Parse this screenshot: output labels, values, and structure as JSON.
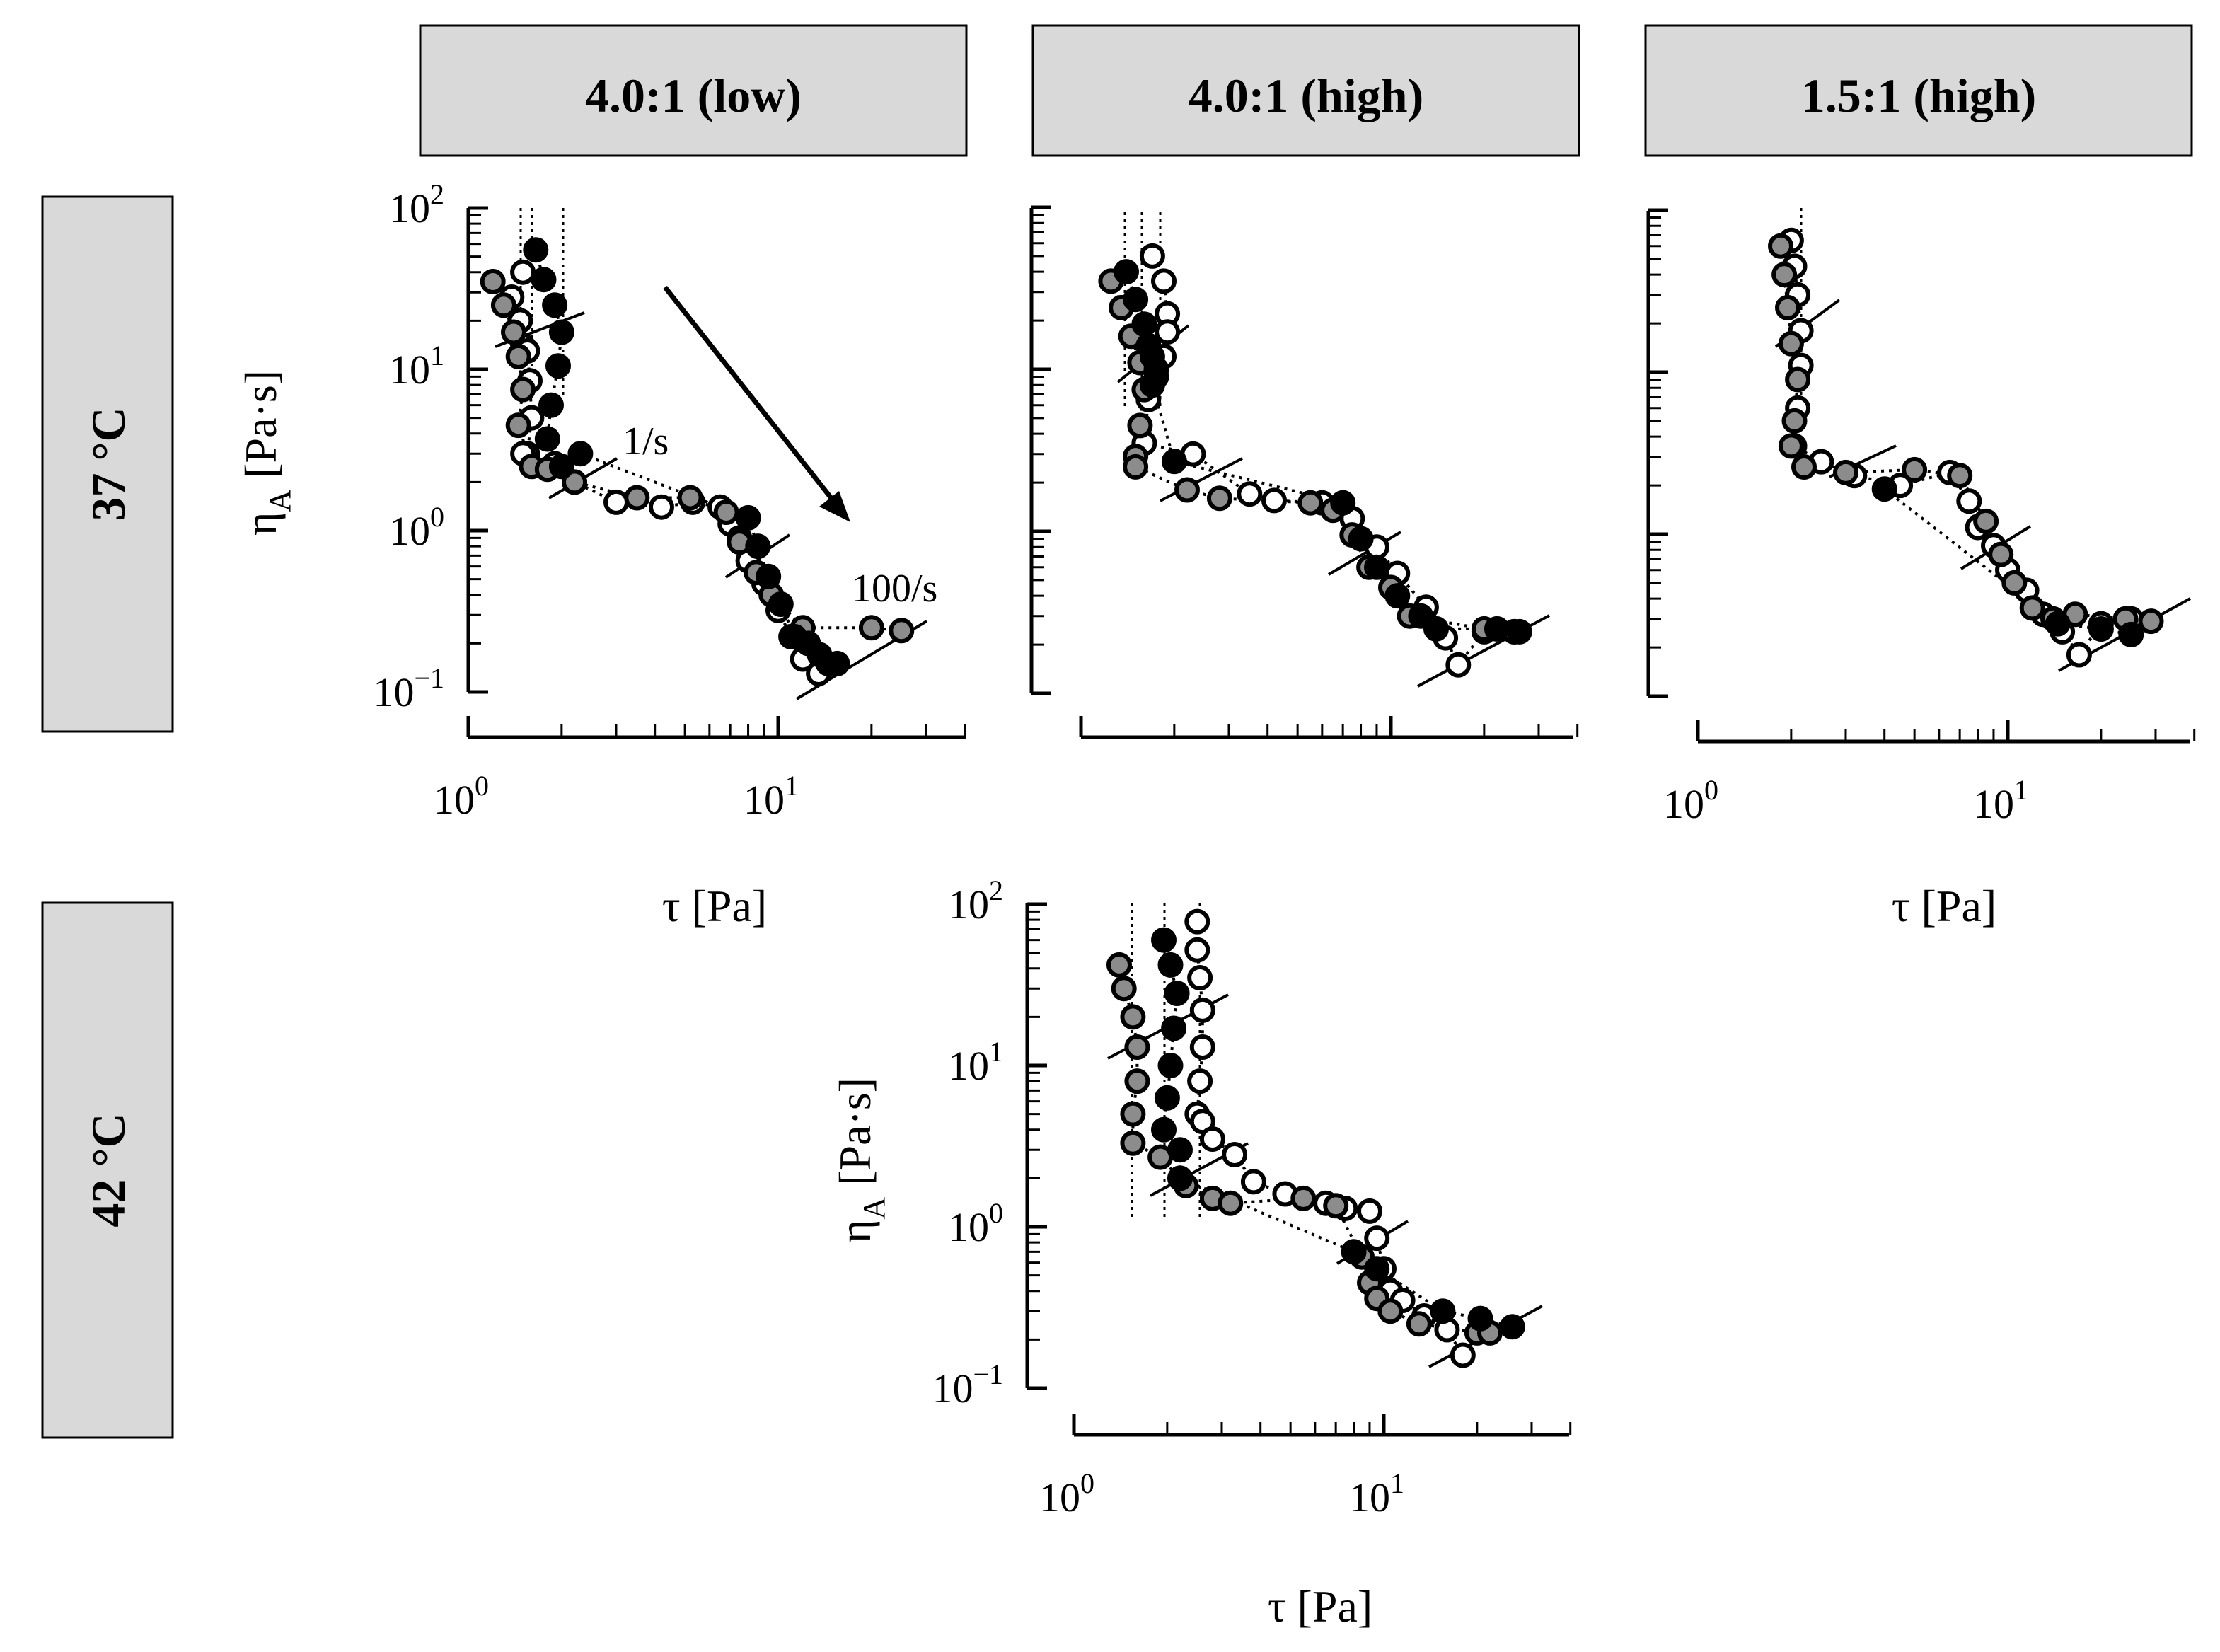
{
  "column_headers": [
    "4.0:1 (low)",
    "4.0:1 (high)",
    "1.5:1 (high)"
  ],
  "row_headers": [
    "37 °C",
    "42 °C"
  ],
  "colors": {
    "header_fill": "#d9d9d9",
    "white": "#ffffff",
    "gray": "#8c8c8c",
    "black": "#000000"
  },
  "chart_data": [
    {
      "type": "scatter",
      "panel": "4.0:1 (low), 37 °C",
      "xlabel": "τ [Pa]",
      "ylabel": "ηA [Pa·s]",
      "xscale": "log",
      "yscale": "log",
      "xlim": [
        1,
        40
      ],
      "ylim": [
        0.1,
        100
      ],
      "xticklabels": [
        "10^0",
        "10^1"
      ],
      "yticklabels": [
        "10^-1",
        "10^0",
        "10^1",
        "10^2"
      ],
      "show_xlabel": true,
      "show_ylabel": true,
      "show_xticklabels": true,
      "show_yticklabels": true,
      "annotations": [
        "1/s",
        "100/s"
      ],
      "series": [
        {
          "name": "white",
          "color": "white",
          "x": [
            1.5,
            1.38,
            1.47,
            1.5,
            1.55,
            1.58,
            1.6,
            1.55,
            1.5,
            1.9,
            2.2,
            3.0,
            4.2,
            5.3,
            6.5,
            7.0,
            7.5,
            8.0,
            9.0,
            10.0,
            11.0,
            12.0,
            13.5
          ],
          "y": [
            40,
            28,
            20,
            14,
            13,
            8.5,
            5,
            3,
            3,
            2.6,
            2.0,
            1.5,
            1.4,
            1.5,
            1.4,
            1.1,
            0.9,
            0.65,
            0.47,
            0.32,
            0.22,
            0.16,
            0.13
          ]
        },
        {
          "name": "gray",
          "color": "gray",
          "x": [
            1.2,
            1.3,
            1.4,
            1.45,
            1.5,
            1.45,
            1.6,
            1.8,
            2.2,
            3.5,
            5.2,
            6.8,
            7.5,
            8.5,
            9.5,
            12.0,
            20.0,
            25.0
          ],
          "y": [
            35,
            25,
            17,
            12,
            7.5,
            4.5,
            2.5,
            2.4,
            2.0,
            1.6,
            1.6,
            1.3,
            0.85,
            0.55,
            0.4,
            0.25,
            0.25,
            0.24
          ]
        },
        {
          "name": "black",
          "color": "black",
          "x": [
            1.65,
            1.75,
            1.9,
            2.0,
            1.95,
            1.85,
            1.8,
            2.0,
            2.3,
            8.0,
            8.6,
            9.3,
            10.2,
            11.3,
            12.5,
            13.6,
            14.5,
            15.5
          ],
          "y": [
            55,
            36,
            25,
            17,
            10.5,
            6,
            3.7,
            2.5,
            3.0,
            1.2,
            0.8,
            0.52,
            0.35,
            0.22,
            0.2,
            0.17,
            0.15,
            0.15
          ]
        }
      ]
    },
    {
      "type": "scatter",
      "panel": "4.0:1 (high), 37 °C",
      "xlabel": "",
      "ylabel": "",
      "xscale": "log",
      "yscale": "log",
      "xlim": [
        1,
        40
      ],
      "ylim": [
        0.1,
        100
      ],
      "show_xlabel": false,
      "show_ylabel": false,
      "show_xticklabels": false,
      "show_yticklabels": false,
      "series": [
        {
          "name": "white",
          "color": "white",
          "x": [
            1.7,
            1.85,
            1.9,
            1.9,
            1.85,
            1.75,
            1.65,
            1.6,
            2.3,
            3.5,
            4.2,
            6.0,
            7.5,
            9.0,
            10.5,
            13.0,
            15.0,
            16.5,
            20.0,
            25.0
          ],
          "y": [
            50,
            35,
            22,
            17,
            12,
            9,
            6.5,
            3.5,
            3.0,
            1.7,
            1.55,
            1.5,
            1.2,
            0.8,
            0.55,
            0.34,
            0.22,
            0.15,
            0.24,
            0.24
          ]
        },
        {
          "name": "gray",
          "color": "gray",
          "x": [
            1.25,
            1.35,
            1.45,
            1.55,
            1.6,
            1.55,
            1.5,
            1.5,
            2.2,
            2.8,
            5.5,
            6.5,
            7.5,
            8.5,
            10.0,
            11.5,
            20.0,
            25.0
          ],
          "y": [
            35,
            24,
            16,
            11,
            7.5,
            4.5,
            2.9,
            2.5,
            1.8,
            1.6,
            1.5,
            1.35,
            0.95,
            0.6,
            0.45,
            0.3,
            0.25,
            0.24
          ]
        },
        {
          "name": "black",
          "color": "black",
          "x": [
            1.4,
            1.5,
            1.6,
            1.65,
            1.7,
            1.75,
            1.7,
            2.0,
            7.0,
            8.0,
            9.0,
            10.5,
            12.5,
            14.0,
            22.0,
            26.0
          ],
          "y": [
            40,
            27,
            19,
            14,
            12,
            10,
            8,
            2.7,
            1.5,
            0.9,
            0.6,
            0.4,
            0.3,
            0.25,
            0.25,
            0.24
          ]
        }
      ]
    },
    {
      "type": "scatter",
      "panel": "1.5:1 (high), 37 °C",
      "xlabel": "τ [Pa]",
      "ylabel": "",
      "xscale": "log",
      "yscale": "log",
      "xlim": [
        1,
        40
      ],
      "ylim": [
        0.1,
        100
      ],
      "xticklabels": [
        "10^0",
        "10^1"
      ],
      "show_xlabel": true,
      "show_ylabel": false,
      "show_xticklabels": true,
      "show_yticklabels": false,
      "series": [
        {
          "name": "white",
          "color": "white",
          "x": [
            2.0,
            2.05,
            2.1,
            2.15,
            2.15,
            2.1,
            2.05,
            2.5,
            3.2,
            4.5,
            6.5,
            7.5,
            8.0,
            9.0,
            10.0,
            11.5,
            13.0,
            15.0,
            17.0,
            20.0,
            25.0
          ],
          "y": [
            65,
            45,
            30,
            18,
            11,
            6,
            3.5,
            2.8,
            2.3,
            2.0,
            2.4,
            1.6,
            1.1,
            0.85,
            0.6,
            0.45,
            0.32,
            0.25,
            0.18,
            0.28,
            0.3
          ]
        },
        {
          "name": "gray",
          "color": "gray",
          "x": [
            1.85,
            1.9,
            1.95,
            2.0,
            2.1,
            2.05,
            2.0,
            2.2,
            3.0,
            5.0,
            7.0,
            8.5,
            9.5,
            10.5,
            12.0,
            14.0,
            16.5,
            24.0,
            29.0
          ],
          "y": [
            60,
            40,
            25,
            15,
            9,
            5,
            3.5,
            2.6,
            2.4,
            2.5,
            2.3,
            1.2,
            0.75,
            0.5,
            0.35,
            0.3,
            0.32,
            0.3,
            0.29
          ]
        },
        {
          "name": "black",
          "color": "black",
          "x": [
            4.0,
            14.5,
            20.0,
            25.0
          ],
          "y": [
            1.9,
            0.28,
            0.26,
            0.24
          ]
        }
      ]
    },
    {
      "type": "scatter",
      "panel": "4.0:1 (high), 42 °C",
      "xlabel": "τ [Pa]",
      "ylabel": "ηA [Pa·s]",
      "xscale": "log",
      "yscale": "log",
      "xlim": [
        1,
        40
      ],
      "ylim": [
        0.1,
        100
      ],
      "xticklabels": [
        "10^0",
        "10^1"
      ],
      "yticklabels": [
        "10^-1",
        "10^0",
        "10^1",
        "10^2"
      ],
      "show_xlabel": true,
      "show_ylabel": true,
      "show_xticklabels": true,
      "show_yticklabels": true,
      "series": [
        {
          "name": "white",
          "color": "white",
          "x": [
            2.5,
            2.5,
            2.55,
            2.6,
            2.6,
            2.55,
            2.5,
            2.6,
            2.8,
            3.3,
            3.8,
            4.8,
            6.5,
            7.5,
            9.0,
            9.5,
            10.0,
            10.5,
            11.5,
            13.5,
            16.0,
            18.0
          ],
          "y": [
            78,
            52,
            35,
            22,
            13,
            8,
            5,
            4.5,
            3.5,
            2.8,
            1.9,
            1.6,
            1.4,
            1.3,
            1.25,
            0.85,
            0.55,
            0.4,
            0.35,
            0.28,
            0.23,
            0.16
          ]
        },
        {
          "name": "gray",
          "color": "gray",
          "x": [
            1.4,
            1.45,
            1.55,
            1.6,
            1.6,
            1.55,
            1.55,
            1.9,
            2.3,
            2.8,
            3.2,
            5.5,
            7.0,
            8.5,
            9.0,
            9.5,
            10.5,
            13.0,
            20.0,
            22.0
          ],
          "y": [
            42,
            30,
            20,
            13,
            8,
            5,
            3.3,
            2.7,
            1.8,
            1.5,
            1.4,
            1.5,
            1.35,
            0.65,
            0.45,
            0.36,
            0.3,
            0.25,
            0.22,
            0.22
          ]
        },
        {
          "name": "black",
          "color": "black",
          "x": [
            1.95,
            2.05,
            2.15,
            2.1,
            2.05,
            2.0,
            1.95,
            2.2,
            2.2,
            8.0,
            9.5,
            15.5,
            20.5,
            26.0
          ],
          "y": [
            60,
            42,
            28,
            17,
            10,
            6.3,
            4.0,
            3.0,
            2.0,
            0.7,
            0.55,
            0.3,
            0.27,
            0.24
          ]
        }
      ]
    }
  ]
}
